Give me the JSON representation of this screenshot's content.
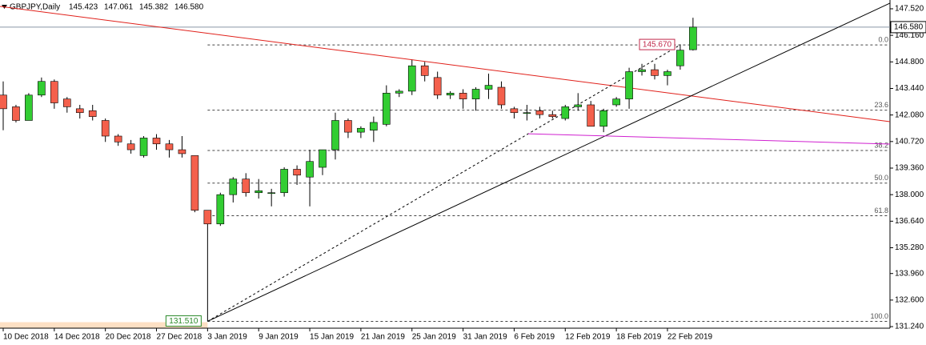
{
  "chart_data": {
    "type": "candlestick",
    "symbol": "GBPJPY,Daily",
    "ohlc_labels": [
      "145.423",
      "147.061",
      "145.382",
      "146.580"
    ],
    "categories": [
      "10 Dec 2018",
      null,
      null,
      null,
      "14 Dec 2018",
      null,
      null,
      null,
      "20 Dec 2018",
      null,
      null,
      null,
      "27 Dec 2018",
      null,
      null,
      null,
      "3 Jan 2019",
      null,
      null,
      null,
      "9 Jan 2019",
      null,
      null,
      null,
      "15 Jan 2019",
      null,
      null,
      null,
      "21 Jan 2019",
      null,
      null,
      null,
      "25 Jan 2019",
      null,
      null,
      null,
      "31 Jan 2019",
      null,
      null,
      null,
      "6 Feb 2019",
      null,
      null,
      null,
      "12 Feb 2019",
      null,
      null,
      null,
      "18 Feb 2019",
      null,
      null,
      null,
      "22 Feb 2019",
      null,
      null
    ],
    "open": [
      143.1,
      142.5,
      141.8,
      143.1,
      143.8,
      142.9,
      142.4,
      142.3,
      141.8,
      141.0,
      140.6,
      140.0,
      140.9,
      140.6,
      140.3,
      140.0,
      137.2,
      136.5,
      138.0,
      138.8,
      138.1,
      138.1,
      138.1,
      139.3,
      138.9,
      139.4,
      140.3,
      141.8,
      141.2,
      141.3,
      141.6,
      143.2,
      143.3,
      144.6,
      144.0,
      143.1,
      143.2,
      142.9,
      143.4,
      143.5,
      142.4,
      142.2,
      142.3,
      142.1,
      141.9,
      142.5,
      142.6,
      141.5,
      142.6,
      142.9,
      144.3,
      144.4,
      144.1,
      144.6,
      145.423
    ],
    "high": [
      143.8,
      142.6,
      143.2,
      144.0,
      143.9,
      143.0,
      142.6,
      142.6,
      141.9,
      141.1,
      140.8,
      141.0,
      141.1,
      140.8,
      141.0,
      140.0,
      137.2,
      138.1,
      138.9,
      139.1,
      138.8,
      138.3,
      139.4,
      139.5,
      140.3,
      140.3,
      142.2,
      141.9,
      141.5,
      142.0,
      143.6,
      143.4,
      144.9,
      144.8,
      144.3,
      143.3,
      143.4,
      143.5,
      144.2,
      143.8,
      142.5,
      142.6,
      142.5,
      142.3,
      142.6,
      143.2,
      142.8,
      142.4,
      143.0,
      144.5,
      144.7,
      144.7,
      144.4,
      145.7,
      147.061
    ],
    "low": [
      141.3,
      141.7,
      141.8,
      143.0,
      142.4,
      142.2,
      141.9,
      141.8,
      140.7,
      140.5,
      140.1,
      139.9,
      140.3,
      139.9,
      139.9,
      137.1,
      131.51,
      136.4,
      137.6,
      137.9,
      137.8,
      137.4,
      137.9,
      138.5,
      137.4,
      139.0,
      139.8,
      140.9,
      140.9,
      140.7,
      141.5,
      143.0,
      143.1,
      143.8,
      142.9,
      142.9,
      142.4,
      142.3,
      142.9,
      142.4,
      141.9,
      141.8,
      141.9,
      141.9,
      141.8,
      142.3,
      141.5,
      141.2,
      142.5,
      142.4,
      144.1,
      143.9,
      143.6,
      144.4,
      145.382
    ],
    "close": [
      142.4,
      141.8,
      143.1,
      143.8,
      142.7,
      142.5,
      142.2,
      142.0,
      141.0,
      140.7,
      140.3,
      140.9,
      140.6,
      140.3,
      140.1,
      137.2,
      136.5,
      138.0,
      138.8,
      138.1,
      138.2,
      138.1,
      139.3,
      139.0,
      139.7,
      140.3,
      141.8,
      141.2,
      141.4,
      141.7,
      143.2,
      143.3,
      144.6,
      144.1,
      143.1,
      143.2,
      142.9,
      143.4,
      143.6,
      142.6,
      142.2,
      142.2,
      142.1,
      142.0,
      142.5,
      142.6,
      141.5,
      142.3,
      142.9,
      144.3,
      144.4,
      144.1,
      144.3,
      145.4,
      146.58
    ],
    "up_color": "#32cd32",
    "down_color": "#f4604c",
    "xlim": [
      -0.25,
      69.42
    ],
    "ylim": [
      131.16,
      147.97
    ],
    "yticks": [
      {
        "value": 147.52,
        "label": "147.520"
      },
      {
        "value": 146.16,
        "label": "146.160"
      },
      {
        "value": 144.8,
        "label": "144.800"
      },
      {
        "value": 143.44,
        "label": "143.440"
      },
      {
        "value": 142.08,
        "label": "142.080"
      },
      {
        "value": 140.72,
        "label": "140.720"
      },
      {
        "value": 139.36,
        "label": "139.360"
      },
      {
        "value": 138.0,
        "label": "138.000"
      },
      {
        "value": 136.64,
        "label": "136.640"
      },
      {
        "value": 135.28,
        "label": "135.280"
      },
      {
        "value": 133.96,
        "label": "133.960"
      },
      {
        "value": 132.6,
        "label": "132.600"
      },
      {
        "value": 131.24,
        "label": "131.240"
      }
    ],
    "last_price": {
      "value": 146.58,
      "label": "146.580"
    },
    "fib": {
      "high": {
        "value": 145.67,
        "label": "145.670"
      },
      "low": {
        "value": 131.51,
        "label": "131.510"
      },
      "start_index": 16,
      "levels": [
        {
          "value": 0,
          "label": "0.0"
        },
        {
          "value": 23.6,
          "label": "23.6"
        },
        {
          "value": 38.2,
          "label": "38.2"
        },
        {
          "value": 50,
          "label": "50.0"
        },
        {
          "value": 61.8,
          "label": "61.8"
        },
        {
          "value": 100,
          "label": "100.0"
        }
      ]
    },
    "trendlines": [
      {
        "color": "#e0201a",
        "x": [
          -0.25,
          69.42
        ],
        "y": [
          147.64,
          141.74
        ],
        "dash": false
      },
      {
        "color": "#000000",
        "x": [
          16,
          69.42
        ],
        "y": [
          131.51,
          147.81
        ],
        "dash": false
      },
      {
        "color": "#000000",
        "x": [
          16,
          53
        ],
        "y": [
          131.51,
          145.67
        ],
        "dash": true
      },
      {
        "color": "#d020d0",
        "x": [
          41.1,
          69.42
        ],
        "y": [
          141.12,
          140.59
        ],
        "dash": false
      }
    ]
  }
}
